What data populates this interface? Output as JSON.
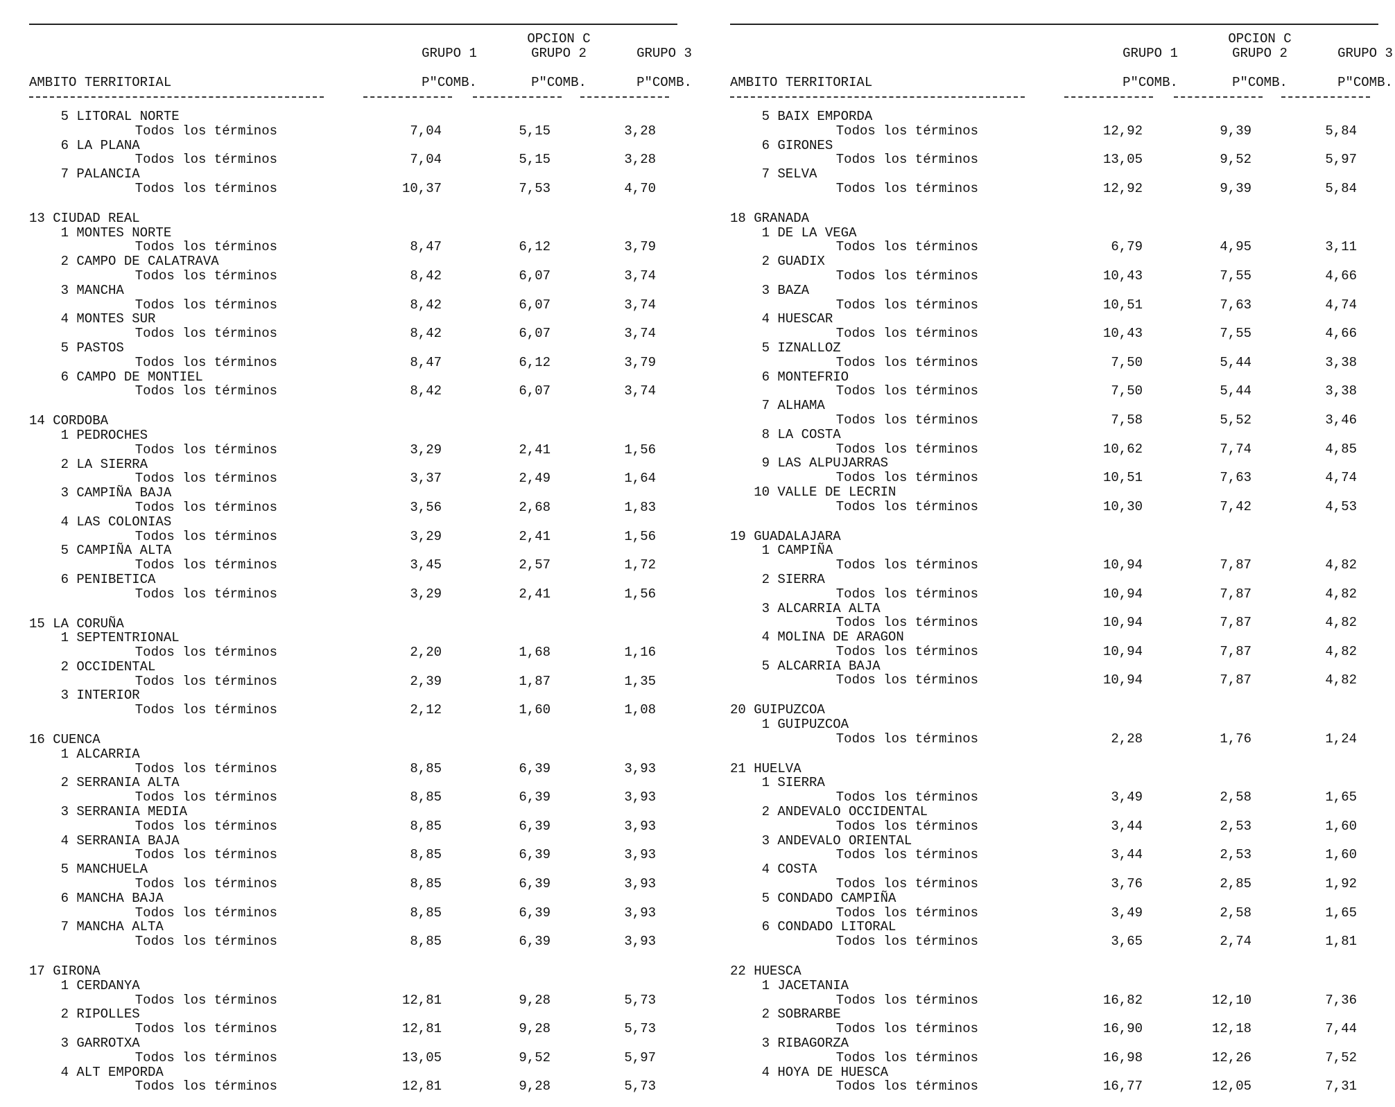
{
  "header": {
    "option": "OPCION C",
    "columns": [
      "GRUPO 1",
      "GRUPO 2",
      "GRUPO 3"
    ],
    "unit": "P\"COMB.",
    "ambito": "AMBITO TERRITORIAL"
  },
  "row_label": "Todos los términos",
  "panels": [
    {
      "groups": [
        {
          "num": "",
          "name": "",
          "subs": [
            {
              "n": "5",
              "name": "LITORAL NORTE",
              "v": [
                "7,04",
                "5,15",
                "3,28"
              ]
            },
            {
              "n": "6",
              "name": "LA PLANA",
              "v": [
                "7,04",
                "5,15",
                "3,28"
              ]
            },
            {
              "n": "7",
              "name": "PALANCIA",
              "v": [
                "10,37",
                "7,53",
                "4,70"
              ]
            }
          ]
        },
        {
          "num": "13",
          "name": "CIUDAD REAL",
          "subs": [
            {
              "n": "1",
              "name": "MONTES NORTE",
              "v": [
                "8,47",
                "6,12",
                "3,79"
              ]
            },
            {
              "n": "2",
              "name": "CAMPO DE CALATRAVA",
              "v": [
                "8,42",
                "6,07",
                "3,74"
              ]
            },
            {
              "n": "3",
              "name": "MANCHA",
              "v": [
                "8,42",
                "6,07",
                "3,74"
              ]
            },
            {
              "n": "4",
              "name": "MONTES SUR",
              "v": [
                "8,42",
                "6,07",
                "3,74"
              ]
            },
            {
              "n": "5",
              "name": "PASTOS",
              "v": [
                "8,47",
                "6,12",
                "3,79"
              ]
            },
            {
              "n": "6",
              "name": "CAMPO DE MONTIEL",
              "v": [
                "8,42",
                "6,07",
                "3,74"
              ]
            }
          ]
        },
        {
          "num": "14",
          "name": "CORDOBA",
          "subs": [
            {
              "n": "1",
              "name": "PEDROCHES",
              "v": [
                "3,29",
                "2,41",
                "1,56"
              ]
            },
            {
              "n": "2",
              "name": "LA SIERRA",
              "v": [
                "3,37",
                "2,49",
                "1,64"
              ]
            },
            {
              "n": "3",
              "name": "CAMPIÑA BAJA",
              "v": [
                "3,56",
                "2,68",
                "1,83"
              ]
            },
            {
              "n": "4",
              "name": "LAS COLONIAS",
              "v": [
                "3,29",
                "2,41",
                "1,56"
              ]
            },
            {
              "n": "5",
              "name": "CAMPIÑA ALTA",
              "v": [
                "3,45",
                "2,57",
                "1,72"
              ]
            },
            {
              "n": "6",
              "name": "PENIBETICA",
              "v": [
                "3,29",
                "2,41",
                "1,56"
              ]
            }
          ]
        },
        {
          "num": "15",
          "name": "LA CORUÑA",
          "subs": [
            {
              "n": "1",
              "name": "SEPTENTRIONAL",
              "v": [
                "2,20",
                "1,68",
                "1,16"
              ]
            },
            {
              "n": "2",
              "name": "OCCIDENTAL",
              "v": [
                "2,39",
                "1,87",
                "1,35"
              ]
            },
            {
              "n": "3",
              "name": "INTERIOR",
              "v": [
                "2,12",
                "1,60",
                "1,08"
              ]
            }
          ]
        },
        {
          "num": "16",
          "name": "CUENCA",
          "subs": [
            {
              "n": "1",
              "name": "ALCARRIA",
              "v": [
                "8,85",
                "6,39",
                "3,93"
              ]
            },
            {
              "n": "2",
              "name": "SERRANIA ALTA",
              "v": [
                "8,85",
                "6,39",
                "3,93"
              ]
            },
            {
              "n": "3",
              "name": "SERRANIA MEDIA",
              "v": [
                "8,85",
                "6,39",
                "3,93"
              ]
            },
            {
              "n": "4",
              "name": "SERRANIA BAJA",
              "v": [
                "8,85",
                "6,39",
                "3,93"
              ]
            },
            {
              "n": "5",
              "name": "MANCHUELA",
              "v": [
                "8,85",
                "6,39",
                "3,93"
              ]
            },
            {
              "n": "6",
              "name": "MANCHA BAJA",
              "v": [
                "8,85",
                "6,39",
                "3,93"
              ]
            },
            {
              "n": "7",
              "name": "MANCHA ALTA",
              "v": [
                "8,85",
                "6,39",
                "3,93"
              ]
            }
          ]
        },
        {
          "num": "17",
          "name": "GIRONA",
          "subs": [
            {
              "n": "1",
              "name": "CERDANYA",
              "v": [
                "12,81",
                "9,28",
                "5,73"
              ]
            },
            {
              "n": "2",
              "name": "RIPOLLES",
              "v": [
                "12,81",
                "9,28",
                "5,73"
              ]
            },
            {
              "n": "3",
              "name": "GARROTXA",
              "v": [
                "13,05",
                "9,52",
                "5,97"
              ]
            },
            {
              "n": "4",
              "name": "ALT EMPORDA",
              "v": [
                "12,81",
                "9,28",
                "5,73"
              ]
            }
          ]
        }
      ]
    },
    {
      "groups": [
        {
          "num": "",
          "name": "",
          "subs": [
            {
              "n": "5",
              "name": "BAIX EMPORDA",
              "v": [
                "12,92",
                "9,39",
                "5,84"
              ]
            },
            {
              "n": "6",
              "name": "GIRONES",
              "v": [
                "13,05",
                "9,52",
                "5,97"
              ]
            },
            {
              "n": "7",
              "name": "SELVA",
              "v": [
                "12,92",
                "9,39",
                "5,84"
              ]
            }
          ]
        },
        {
          "num": "18",
          "name": "GRANADA",
          "subs": [
            {
              "n": "1",
              "name": "DE LA VEGA",
              "v": [
                "6,79",
                "4,95",
                "3,11"
              ]
            },
            {
              "n": "2",
              "name": "GUADIX",
              "v": [
                "10,43",
                "7,55",
                "4,66"
              ]
            },
            {
              "n": "3",
              "name": "BAZA",
              "v": [
                "10,51",
                "7,63",
                "4,74"
              ]
            },
            {
              "n": "4",
              "name": "HUESCAR",
              "v": [
                "10,43",
                "7,55",
                "4,66"
              ]
            },
            {
              "n": "5",
              "name": "IZNALLOZ",
              "v": [
                "7,50",
                "5,44",
                "3,38"
              ]
            },
            {
              "n": "6",
              "name": "MONTEFRIO",
              "v": [
                "7,50",
                "5,44",
                "3,38"
              ]
            },
            {
              "n": "7",
              "name": "ALHAMA",
              "v": [
                "7,58",
                "5,52",
                "3,46"
              ]
            },
            {
              "n": "8",
              "name": "LA COSTA",
              "v": [
                "10,62",
                "7,74",
                "4,85"
              ]
            },
            {
              "n": "9",
              "name": "LAS ALPUJARRAS",
              "v": [
                "10,51",
                "7,63",
                "4,74"
              ]
            },
            {
              "n": "10",
              "name": "VALLE DE LECRIN",
              "v": [
                "10,30",
                "7,42",
                "4,53"
              ]
            }
          ]
        },
        {
          "num": "19",
          "name": "GUADALAJARA",
          "subs": [
            {
              "n": "1",
              "name": "CAMPIÑA",
              "v": [
                "10,94",
                "7,87",
                "4,82"
              ]
            },
            {
              "n": "2",
              "name": "SIERRA",
              "v": [
                "10,94",
                "7,87",
                "4,82"
              ]
            },
            {
              "n": "3",
              "name": "ALCARRIA ALTA",
              "v": [
                "10,94",
                "7,87",
                "4,82"
              ]
            },
            {
              "n": "4",
              "name": "MOLINA DE ARAGON",
              "v": [
                "10,94",
                "7,87",
                "4,82"
              ]
            },
            {
              "n": "5",
              "name": "ALCARRIA BAJA",
              "v": [
                "10,94",
                "7,87",
                "4,82"
              ]
            }
          ]
        },
        {
          "num": "20",
          "name": "GUIPUZCOA",
          "subs": [
            {
              "n": "1",
              "name": "GUIPUZCOA",
              "v": [
                "2,28",
                "1,76",
                "1,24"
              ]
            }
          ]
        },
        {
          "num": "21",
          "name": "HUELVA",
          "subs": [
            {
              "n": "1",
              "name": "SIERRA",
              "v": [
                "3,49",
                "2,58",
                "1,65"
              ]
            },
            {
              "n": "2",
              "name": "ANDEVALO OCCIDENTAL",
              "v": [
                "3,44",
                "2,53",
                "1,60"
              ]
            },
            {
              "n": "3",
              "name": "ANDEVALO ORIENTAL",
              "v": [
                "3,44",
                "2,53",
                "1,60"
              ]
            },
            {
              "n": "4",
              "name": "COSTA",
              "v": [
                "3,76",
                "2,85",
                "1,92"
              ]
            },
            {
              "n": "5",
              "name": "CONDADO CAMPIÑA",
              "v": [
                "3,49",
                "2,58",
                "1,65"
              ]
            },
            {
              "n": "6",
              "name": "CONDADO LITORAL",
              "v": [
                "3,65",
                "2,74",
                "1,81"
              ]
            }
          ]
        },
        {
          "num": "22",
          "name": "HUESCA",
          "subs": [
            {
              "n": "1",
              "name": "JACETANIA",
              "v": [
                "16,82",
                "12,10",
                "7,36"
              ]
            },
            {
              "n": "2",
              "name": "SOBRARBE",
              "v": [
                "16,90",
                "12,18",
                "7,44"
              ]
            },
            {
              "n": "3",
              "name": "RIBAGORZA",
              "v": [
                "16,98",
                "12,26",
                "7,52"
              ]
            },
            {
              "n": "4",
              "name": "HOYA DE HUESCA",
              "v": [
                "16,77",
                "12,05",
                "7,31"
              ]
            }
          ]
        }
      ]
    }
  ]
}
